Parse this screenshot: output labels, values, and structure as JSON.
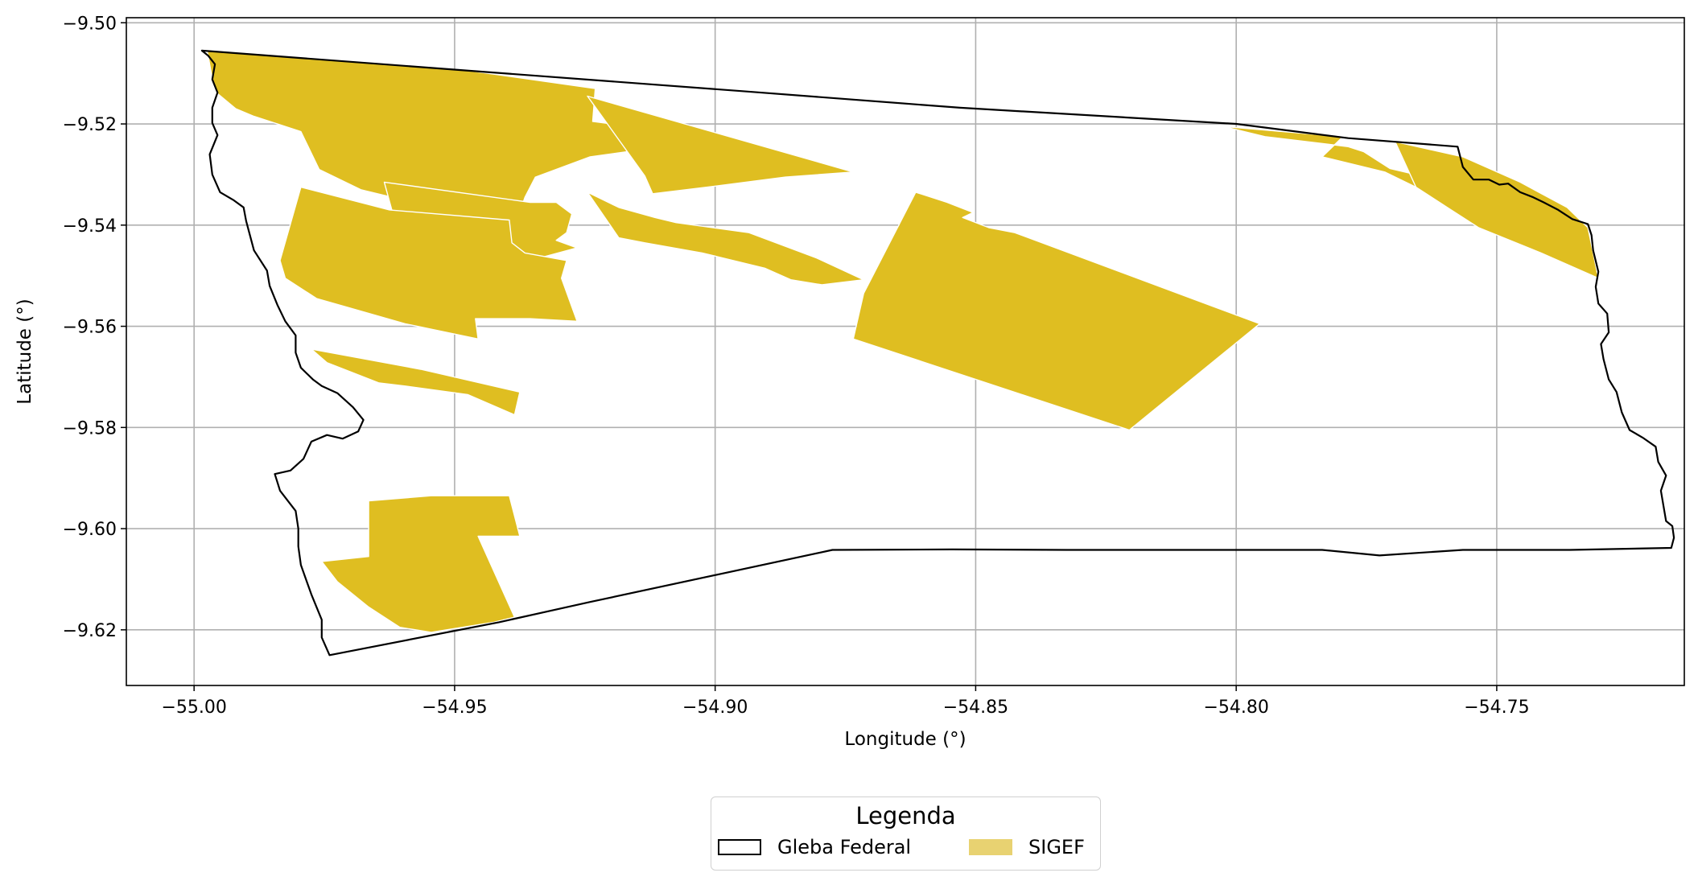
{
  "map": {
    "xlabel": "Longitude (°)",
    "ylabel": "Latitude (°)",
    "xlim": [
      -55.013,
      -54.714
    ],
    "ylim": [
      -9.631,
      -9.499
    ],
    "x_ticks": [
      -55.0,
      -54.95,
      -54.9,
      -54.85,
      -54.8,
      -54.75
    ],
    "x_tick_labels": [
      "−55.00",
      "−54.95",
      "−54.90",
      "−54.85",
      "−54.80",
      "−54.75"
    ],
    "y_ticks": [
      -9.5,
      -9.52,
      -9.54,
      -9.56,
      -9.58,
      -9.6,
      -9.62
    ],
    "y_tick_labels": [
      "−9.50",
      "−9.52",
      "−9.54",
      "−9.56",
      "−9.58",
      "−9.60",
      "−9.62"
    ],
    "grid": true,
    "colors": {
      "sigef": "#dfbe21",
      "gleba_edge": "#000000",
      "grid": "#b0b0b0"
    }
  },
  "layers": {
    "gleba": {
      "name": "Gleba Federal",
      "polygon": [
        [
          -54.9985,
          -9.5055
        ],
        [
          -54.947,
          -9.5095
        ],
        [
          -54.895,
          -9.5135
        ],
        [
          -54.853,
          -9.5168
        ],
        [
          -54.8,
          -9.52
        ],
        [
          -54.7785,
          -9.5228
        ],
        [
          -54.7575,
          -9.5245
        ],
        [
          -54.7565,
          -9.5285
        ],
        [
          -54.7545,
          -9.531
        ],
        [
          -54.7515,
          -9.531
        ],
        [
          -54.7495,
          -9.532
        ],
        [
          -54.7478,
          -9.5318
        ],
        [
          -54.7455,
          -9.5335
        ],
        [
          -54.743,
          -9.5345
        ],
        [
          -54.741,
          -9.5355
        ],
        [
          -54.7382,
          -9.537
        ],
        [
          -54.7355,
          -9.5388
        ],
        [
          -54.7325,
          -9.5398
        ],
        [
          -54.7318,
          -9.542
        ],
        [
          -54.7315,
          -9.545
        ],
        [
          -54.7305,
          -9.5492
        ],
        [
          -54.731,
          -9.5522
        ],
        [
          -54.7305,
          -9.5555
        ],
        [
          -54.7288,
          -9.5575
        ],
        [
          -54.7285,
          -9.5612
        ],
        [
          -54.73,
          -9.5635
        ],
        [
          -54.7295,
          -9.5665
        ],
        [
          -54.7285,
          -9.5705
        ],
        [
          -54.727,
          -9.573
        ],
        [
          -54.726,
          -9.577
        ],
        [
          -54.7245,
          -9.5805
        ],
        [
          -54.722,
          -9.582
        ],
        [
          -54.7195,
          -9.5838
        ],
        [
          -54.719,
          -9.5868
        ],
        [
          -54.7175,
          -9.5895
        ],
        [
          -54.7185,
          -9.5925
        ],
        [
          -54.718,
          -9.5955
        ],
        [
          -54.7175,
          -9.5985
        ],
        [
          -54.7163,
          -9.5995
        ],
        [
          -54.716,
          -9.6018
        ],
        [
          -54.7165,
          -9.6038
        ],
        [
          -54.736,
          -9.6042
        ],
        [
          -54.7565,
          -9.6042
        ],
        [
          -54.7725,
          -9.6053
        ],
        [
          -54.7835,
          -9.6042
        ],
        [
          -54.8325,
          -9.6042
        ],
        [
          -54.8545,
          -9.6041
        ],
        [
          -54.8775,
          -9.6042
        ],
        [
          -54.924,
          -9.6145
        ],
        [
          -54.9415,
          -9.6185
        ],
        [
          -54.974,
          -9.625
        ],
        [
          -54.9755,
          -9.6215
        ],
        [
          -54.9755,
          -9.618
        ],
        [
          -54.9775,
          -9.613
        ],
        [
          -54.9795,
          -9.6072
        ],
        [
          -54.98,
          -9.6035
        ],
        [
          -54.98,
          -9.6
        ],
        [
          -54.9805,
          -9.5965
        ],
        [
          -54.9835,
          -9.5925
        ],
        [
          -54.9845,
          -9.5892
        ],
        [
          -54.9815,
          -9.5885
        ],
        [
          -54.979,
          -9.5862
        ],
        [
          -54.9775,
          -9.5828
        ],
        [
          -54.9745,
          -9.5815
        ],
        [
          -54.9715,
          -9.5822
        ],
        [
          -54.9685,
          -9.5808
        ],
        [
          -54.9675,
          -9.5785
        ],
        [
          -54.9695,
          -9.576
        ],
        [
          -54.9725,
          -9.5732
        ],
        [
          -54.9755,
          -9.5718
        ],
        [
          -54.9772,
          -9.5705
        ],
        [
          -54.9795,
          -9.5682
        ],
        [
          -54.9805,
          -9.5652
        ],
        [
          -54.9805,
          -9.5618
        ],
        [
          -54.9825,
          -9.559
        ],
        [
          -54.984,
          -9.5558
        ],
        [
          -54.9855,
          -9.552
        ],
        [
          -54.986,
          -9.549
        ],
        [
          -54.9885,
          -9.545
        ],
        [
          -54.99,
          -9.5392
        ],
        [
          -54.9905,
          -9.5365
        ],
        [
          -54.9925,
          -9.535
        ],
        [
          -54.995,
          -9.5335
        ],
        [
          -54.9965,
          -9.53
        ],
        [
          -54.997,
          -9.526
        ],
        [
          -54.9955,
          -9.5222
        ],
        [
          -54.9965,
          -9.5198
        ],
        [
          -54.9965,
          -9.5168
        ],
        [
          -54.9955,
          -9.5138
        ],
        [
          -54.9965,
          -9.5112
        ],
        [
          -54.996,
          -9.5082
        ],
        [
          -54.9973,
          -9.5065
        ],
        [
          -54.9985,
          -9.5055
        ]
      ]
    },
    "sigef": {
      "name": "SIGEF",
      "parcels": [
        [
          [
            -54.9975,
            -9.5055
          ],
          [
            -54.947,
            -9.5095
          ],
          [
            -54.923,
            -9.513
          ],
          [
            -54.9235,
            -9.5195
          ],
          [
            -54.909,
            -9.5215
          ],
          [
            -54.91,
            -9.5245
          ],
          [
            -54.924,
            -9.5265
          ],
          [
            -54.9345,
            -9.5305
          ],
          [
            -54.9365,
            -9.5345
          ],
          [
            -54.939,
            -9.542
          ],
          [
            -54.948,
            -9.538
          ],
          [
            -54.968,
            -9.533
          ],
          [
            -54.976,
            -9.529
          ],
          [
            -54.9795,
            -9.5215
          ],
          [
            -54.9885,
            -9.5185
          ],
          [
            -54.992,
            -9.517
          ],
          [
            -54.9955,
            -9.514
          ],
          [
            -54.9965,
            -9.511
          ],
          [
            -54.9975,
            -9.5055
          ]
        ],
        [
          [
            -54.9245,
            -9.5145
          ],
          [
            -54.8735,
            -9.5295
          ],
          [
            -54.8865,
            -9.5305
          ],
          [
            -54.9015,
            -9.5325
          ],
          [
            -54.912,
            -9.5338
          ],
          [
            -54.9135,
            -9.5303
          ],
          [
            -54.9245,
            -9.5145
          ]
        ],
        [
          [
            -54.9635,
            -9.5315
          ],
          [
            -54.9355,
            -9.5355
          ],
          [
            -54.9305,
            -9.5355
          ],
          [
            -54.9275,
            -9.5378
          ],
          [
            -54.9285,
            -9.5415
          ],
          [
            -54.9305,
            -9.543
          ],
          [
            -54.9265,
            -9.5445
          ],
          [
            -54.9355,
            -9.547
          ],
          [
            -54.9455,
            -9.5485
          ],
          [
            -54.9585,
            -9.5505
          ],
          [
            -54.9635,
            -9.5315
          ]
        ],
        [
          [
            -54.9795,
            -9.5325
          ],
          [
            -54.9625,
            -9.537
          ],
          [
            -54.9395,
            -9.539
          ],
          [
            -54.939,
            -9.5435
          ],
          [
            -54.9365,
            -9.5455
          ],
          [
            -54.9285,
            -9.547
          ],
          [
            -54.9295,
            -9.5505
          ],
          [
            -54.9265,
            -9.559
          ],
          [
            -54.9355,
            -9.5585
          ],
          [
            -54.946,
            -9.5585
          ],
          [
            -54.9455,
            -9.5625
          ],
          [
            -54.9595,
            -9.5595
          ],
          [
            -54.9765,
            -9.5545
          ],
          [
            -54.9825,
            -9.5505
          ],
          [
            -54.9835,
            -9.547
          ],
          [
            -54.9795,
            -9.5325
          ]
        ],
        [
          [
            -54.9245,
            -9.5335
          ],
          [
            -54.9185,
            -9.5365
          ],
          [
            -54.9115,
            -9.5385
          ],
          [
            -54.9075,
            -9.5395
          ],
          [
            -54.8935,
            -9.5415
          ],
          [
            -54.8805,
            -9.5465
          ],
          [
            -54.8715,
            -9.5508
          ],
          [
            -54.8795,
            -9.5518
          ],
          [
            -54.8855,
            -9.5508
          ],
          [
            -54.8905,
            -9.5485
          ],
          [
            -54.9025,
            -9.5455
          ],
          [
            -54.9135,
            -9.5435
          ],
          [
            -54.9185,
            -9.5425
          ],
          [
            -54.9245,
            -9.5335
          ]
        ],
        [
          [
            -54.8615,
            -9.5335
          ],
          [
            -54.8715,
            -9.5535
          ],
          [
            -54.8735,
            -9.5625
          ],
          [
            -54.8205,
            -9.5805
          ],
          [
            -54.7955,
            -9.5595
          ],
          [
            -54.8425,
            -9.5415
          ],
          [
            -54.8475,
            -9.5405
          ],
          [
            -54.8525,
            -9.5385
          ],
          [
            -54.8505,
            -9.5375
          ],
          [
            -54.8555,
            -9.5355
          ],
          [
            -54.8615,
            -9.5335
          ]
        ],
        [
          [
            -54.9775,
            -9.5645
          ],
          [
            -54.9565,
            -9.5685
          ],
          [
            -54.9375,
            -9.573
          ],
          [
            -54.9385,
            -9.5775
          ],
          [
            -54.9475,
            -9.5735
          ],
          [
            -54.9595,
            -9.5718
          ],
          [
            -54.9645,
            -9.5712
          ],
          [
            -54.9695,
            -9.5692
          ],
          [
            -54.9745,
            -9.5672
          ],
          [
            -54.9775,
            -9.5645
          ]
        ],
        [
          [
            -54.9665,
            -9.5945
          ],
          [
            -54.9665,
            -9.6055
          ],
          [
            -54.9755,
            -9.6065
          ],
          [
            -54.9725,
            -9.6105
          ],
          [
            -54.9665,
            -9.6155
          ],
          [
            -54.9605,
            -9.6195
          ],
          [
            -54.9545,
            -9.6205
          ],
          [
            -54.9425,
            -9.6185
          ],
          [
            -54.9385,
            -9.6175
          ],
          [
            -54.9455,
            -9.6015
          ],
          [
            -54.9375,
            -9.6015
          ],
          [
            -54.9395,
            -9.5935
          ],
          [
            -54.9545,
            -9.5935
          ],
          [
            -54.9665,
            -9.5945
          ]
        ],
        [
          [
            -54.8025,
            -9.5205
          ],
          [
            -54.7795,
            -9.5225
          ],
          [
            -54.7835,
            -9.5265
          ],
          [
            -54.7715,
            -9.5295
          ],
          [
            -54.7655,
            -9.5325
          ],
          [
            -54.7635,
            -9.5305
          ],
          [
            -54.7705,
            -9.5288
          ],
          [
            -54.7755,
            -9.5255
          ],
          [
            -54.7785,
            -9.5245
          ],
          [
            -54.7945,
            -9.5225
          ],
          [
            -54.8025,
            -9.5205
          ]
        ],
        [
          [
            -54.7695,
            -9.5235
          ],
          [
            -54.7565,
            -9.5265
          ],
          [
            -54.7455,
            -9.5315
          ],
          [
            -54.7365,
            -9.5365
          ],
          [
            -54.7325,
            -9.5405
          ],
          [
            -54.7305,
            -9.5505
          ],
          [
            -54.7415,
            -9.5455
          ],
          [
            -54.7535,
            -9.5405
          ],
          [
            -54.7595,
            -9.5365
          ],
          [
            -54.7655,
            -9.5325
          ],
          [
            -54.7695,
            -9.5235
          ]
        ]
      ]
    }
  },
  "legend": {
    "title": "Legenda",
    "items": [
      {
        "label": "Gleba Federal",
        "kind": "gleba"
      },
      {
        "label": "SIGEF",
        "kind": "sigef"
      }
    ]
  }
}
